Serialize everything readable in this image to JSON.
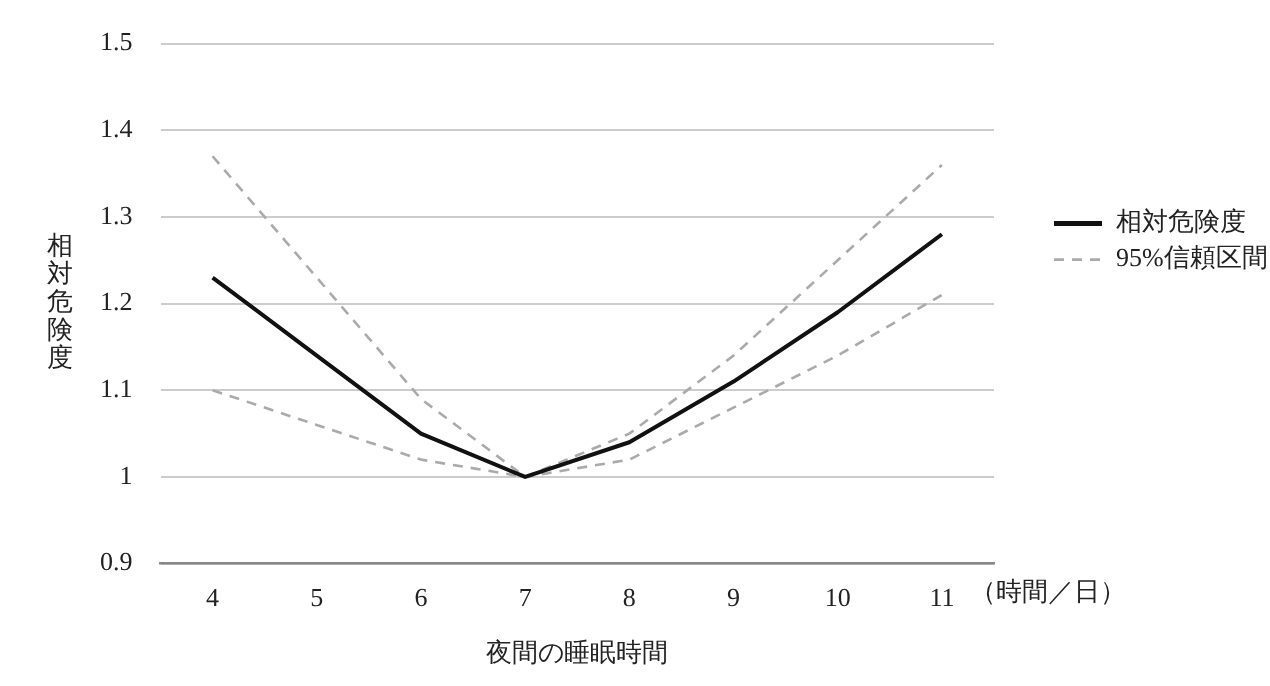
{
  "chart_data": {
    "type": "line",
    "xlabel": "夜間の睡眠時間",
    "ylabel": "相対危険度",
    "categories": [
      "4",
      "5",
      "6",
      "7",
      "8",
      "9",
      "10",
      "11"
    ],
    "series": [
      {
        "name": "相対危険度",
        "color": "#111111",
        "line_style": "solid",
        "values": [
          1.23,
          1.14,
          1.05,
          1.0,
          1.04,
          1.11,
          1.19,
          1.28
        ]
      },
      {
        "name": "95%信頼区間",
        "color": "#aaaaaa",
        "line_style": "dashed",
        "values": [
          1.37,
          1.23,
          1.09,
          1.0,
          1.05,
          1.14,
          1.25,
          1.36
        ]
      },
      {
        "color": "#aaaaaa",
        "line_style": "dashed",
        "values": [
          1.1,
          1.06,
          1.02,
          1.0,
          1.02,
          1.08,
          1.14,
          1.21
        ]
      }
    ],
    "ylim": [
      0.9,
      1.5
    ],
    "yticks": [
      0.9,
      1,
      1.1,
      1.2,
      1.3,
      1.4,
      1.5
    ],
    "grid": "y",
    "legend": "right",
    "marker": "none",
    "annotations": [
      "（時間／日）"
    ]
  }
}
